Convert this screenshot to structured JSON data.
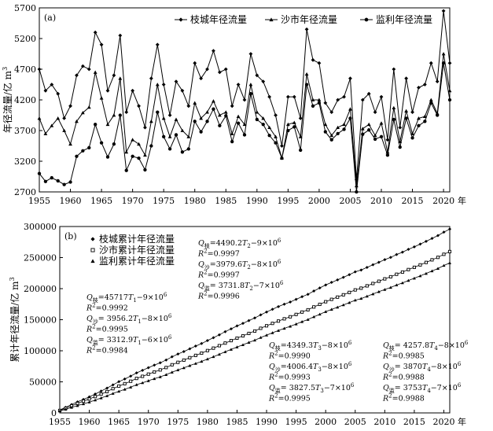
{
  "chart_data": [
    {
      "type": "line",
      "panel_label": "(a)",
      "ylabel": "年径流量/亿 m",
      "ylabel_sup": "3",
      "x_unit": "年",
      "xlim": [
        1955,
        2021
      ],
      "ylim": [
        2700,
        5700
      ],
      "yticks": [
        2700,
        3200,
        3700,
        4200,
        4700,
        5200,
        5700
      ],
      "xticks": [
        1955,
        1960,
        1965,
        1970,
        1975,
        1980,
        1985,
        1990,
        1995,
        2000,
        2005,
        2010,
        2015,
        2020
      ],
      "legend_position": "top-right",
      "x": [
        1955,
        1956,
        1957,
        1958,
        1959,
        1960,
        1961,
        1962,
        1963,
        1964,
        1965,
        1966,
        1967,
        1968,
        1969,
        1970,
        1971,
        1972,
        1973,
        1974,
        1975,
        1976,
        1977,
        1978,
        1979,
        1980,
        1981,
        1982,
        1983,
        1984,
        1985,
        1986,
        1987,
        1988,
        1989,
        1990,
        1991,
        1992,
        1993,
        1994,
        1995,
        1996,
        1997,
        1998,
        1999,
        2000,
        2001,
        2002,
        2003,
        2004,
        2005,
        2006,
        2007,
        2008,
        2009,
        2010,
        2011,
        2012,
        2013,
        2014,
        2015,
        2016,
        2017,
        2018,
        2019,
        2020,
        2021
      ],
      "series": [
        {
          "name": "枝城年径流量",
          "marker": "diamond",
          "values": [
            4700,
            4350,
            4450,
            4300,
            3900,
            4100,
            4600,
            4750,
            4700,
            5300,
            5100,
            4350,
            4600,
            5250,
            4000,
            4350,
            4100,
            3750,
            4550,
            5100,
            4450,
            3950,
            4500,
            4350,
            4100,
            4800,
            4550,
            4700,
            5000,
            4650,
            4700,
            4100,
            4450,
            4200,
            4950,
            4600,
            4500,
            4250,
            3950,
            3450,
            4250,
            4250,
            3900,
            5350,
            4850,
            4800,
            4150,
            4000,
            4200,
            4250,
            4550,
            2900,
            4200,
            4300,
            4000,
            4250,
            3550,
            4700,
            3750,
            4550,
            4000,
            4400,
            4450,
            4800,
            4500,
            5650,
            4800
          ]
        },
        {
          "name": "沙市年径流量",
          "marker": "triangle",
          "values": [
            3900,
            3650,
            3780,
            3900,
            3700,
            3480,
            3850,
            3990,
            4080,
            4650,
            4230,
            3800,
            3950,
            4550,
            3350,
            3550,
            3480,
            3300,
            3850,
            4450,
            3900,
            3600,
            3880,
            3700,
            3600,
            4150,
            3900,
            4000,
            4180,
            3950,
            4000,
            3650,
            3930,
            3800,
            4450,
            4000,
            3900,
            3750,
            3600,
            3250,
            3800,
            3830,
            3600,
            4620,
            4200,
            4200,
            3800,
            3620,
            3750,
            3800,
            4050,
            2800,
            3730,
            3800,
            3620,
            3820,
            3350,
            4070,
            3520,
            4020,
            3650,
            3900,
            3930,
            4200,
            3980,
            4950,
            4350
          ]
        },
        {
          "name": "监利年径流量",
          "marker": "circle",
          "values": [
            3000,
            2870,
            2930,
            2880,
            2820,
            2860,
            3280,
            3370,
            3420,
            3800,
            3500,
            3270,
            3480,
            3950,
            3050,
            3280,
            3250,
            3060,
            3450,
            4000,
            3600,
            3400,
            3630,
            3350,
            3400,
            3850,
            3680,
            3850,
            4050,
            3780,
            3940,
            3520,
            3820,
            3630,
            4300,
            3880,
            3800,
            3620,
            3500,
            3250,
            3700,
            3760,
            3380,
            4450,
            4100,
            4150,
            3680,
            3550,
            3650,
            3720,
            3900,
            2700,
            3640,
            3710,
            3560,
            3600,
            3300,
            3880,
            3430,
            3900,
            3580,
            3780,
            3850,
            4150,
            3950,
            4800,
            4200
          ]
        }
      ]
    },
    {
      "type": "line",
      "panel_label": "(b)",
      "ylabel": "累计年径流量/亿 m",
      "ylabel_sup": "3",
      "x_unit": "年",
      "xlim": [
        1955,
        2021
      ],
      "ylim": [
        0,
        300000
      ],
      "yticks": [
        0,
        50000,
        100000,
        150000,
        200000,
        250000,
        300000
      ],
      "xticks": [
        1955,
        1960,
        1965,
        1970,
        1975,
        1980,
        1985,
        1990,
        1995,
        2000,
        2005,
        2010,
        2015,
        2020
      ],
      "legend_position": "top-left",
      "series": [
        {
          "name": "枝城累计年径流量",
          "marker": "diamond",
          "annual_ref": 0
        },
        {
          "name": "沙市累计年径流量",
          "marker": "square",
          "annual_ref": 1
        },
        {
          "name": "监利累计年径流量",
          "marker": "triangle",
          "annual_ref": 2
        }
      ],
      "annotations": [
        {
          "lines": [
            {
              "Q": "Q",
              "sub": "枝",
              "expr": "=45717",
              "var": "T",
              "vsub": "1",
              "tail": "−9×10",
              "sup": "6"
            },
            {
              "R": true,
              "val": "=0.9992"
            },
            {
              "Q": "Q",
              "sub": "沙",
              "expr": "= 3956.2",
              "var": "T",
              "vsub": "1",
              "tail": "−8×10",
              "sup": "6"
            },
            {
              "R": true,
              "val": "=0.9995"
            },
            {
              "Q": "Q",
              "sub": "监",
              "expr": "= 3312.9",
              "var": "T",
              "vsub": "1",
              "tail": "−6×10",
              "sup": "6"
            },
            {
              "R": true,
              "val": "=0.9984"
            }
          ]
        },
        {
          "lines": [
            {
              "Q": "Q",
              "sub": "枝",
              "expr": "=4490.2",
              "var": "T",
              "vsub": "2",
              "tail": "−9×10",
              "sup": "6"
            },
            {
              "R": true,
              "val": "=0.9997"
            },
            {
              "Q": "Q",
              "sub": "沙",
              "expr": "=3979.6",
              "var": "T",
              "vsub": "2",
              "tail": "−8×10",
              "sup": "6"
            },
            {
              "R": true,
              "val": "=0.9997"
            },
            {
              "Q": "Q",
              "sub": "监",
              "expr": "= 3731.8",
              "var": "T",
              "vsub": "2",
              "tail": "−7×10",
              "sup": "6"
            },
            {
              "R": true,
              "val": "=0.9996"
            }
          ]
        },
        {
          "lines": [
            {
              "Q": "Q",
              "sub": "枝",
              "expr": "=4349.3",
              "var": "T",
              "vsub": "3",
              "tail": "−8×10",
              "sup": "6"
            },
            {
              "R": true,
              "val": "=0.9990"
            },
            {
              "Q": "Q",
              "sub": "沙",
              "expr": "=4006.4",
              "var": "T",
              "vsub": "3",
              "tail": "−8×10",
              "sup": "6"
            },
            {
              "R": true,
              "val": "=0.9993"
            },
            {
              "Q": "Q",
              "sub": "监",
              "expr": "= 3827.5",
              "var": "T",
              "vsub": "3",
              "tail": "−7×10",
              "sup": "6"
            },
            {
              "R": true,
              "val": "=0.9995"
            }
          ]
        },
        {
          "lines": [
            {
              "Q": "Q",
              "sub": "枝",
              "expr": "= 4257.8",
              "var": "T",
              "vsub": "4",
              "tail": "−8×10",
              "sup": "6"
            },
            {
              "R": true,
              "val": "=0.9985"
            },
            {
              "Q": "Q",
              "sub": "沙",
              "expr": "= 3870",
              "var": "T",
              "vsub": "4",
              "tail": "−8×10",
              "sup": "6"
            },
            {
              "R": true,
              "val": "=0.9988"
            },
            {
              "Q": "Q",
              "sub": "监",
              "expr": "= 3753",
              "var": "T",
              "vsub": "4",
              "tail": "−7×10",
              "sup": "6"
            },
            {
              "R": true,
              "val": "=0.9988"
            }
          ]
        }
      ]
    }
  ]
}
